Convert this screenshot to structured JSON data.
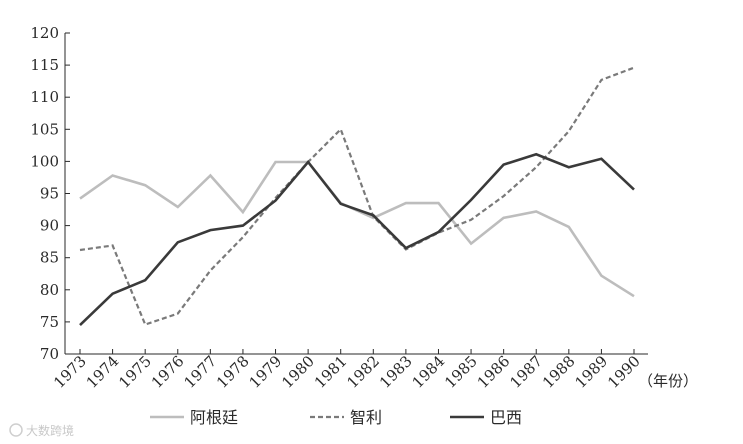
{
  "chart_data": {
    "type": "line",
    "title": "",
    "xlabel": "（年份）",
    "ylabel": "",
    "categories": [
      "1973",
      "1974",
      "1975",
      "1976",
      "1977",
      "1978",
      "1979",
      "1980",
      "1981",
      "1982",
      "1983",
      "1984",
      "1985",
      "1986",
      "1987",
      "1988",
      "1989",
      "1990"
    ],
    "y_ticks": [
      "70",
      "75",
      "80",
      "85",
      "90",
      "95",
      "100",
      "105",
      "110",
      "115",
      "120"
    ],
    "ylim": [
      70,
      120
    ],
    "grid": false,
    "legend_position": "bottom",
    "series": [
      {
        "name": "阿根廷",
        "color": "#bdbdbd",
        "style": "solid",
        "values": [
          94.2,
          97.8,
          96.3,
          92.9,
          97.8,
          92.1,
          99.9,
          99.9,
          93.5,
          91.2,
          93.5,
          93.5,
          87.2,
          91.2,
          92.2,
          89.8,
          82.2,
          79.0
        ]
      },
      {
        "name": "智利",
        "color": "#7a7a7a",
        "style": "dashed",
        "values": [
          86.2,
          86.9,
          74.6,
          76.3,
          83.0,
          88.2,
          94.3,
          99.9,
          105.0,
          91.4,
          86.3,
          88.9,
          90.9,
          94.6,
          99.1,
          104.7,
          112.7,
          114.6
        ]
      },
      {
        "name": "巴西",
        "color": "#3a3a3a",
        "style": "solid",
        "values": [
          74.5,
          79.4,
          81.5,
          87.4,
          89.3,
          90.0,
          93.9,
          99.9,
          93.4,
          91.6,
          86.5,
          89.0,
          94.0,
          99.5,
          101.1,
          99.1,
          100.4,
          95.6
        ]
      }
    ]
  },
  "watermark": "大数跨境"
}
